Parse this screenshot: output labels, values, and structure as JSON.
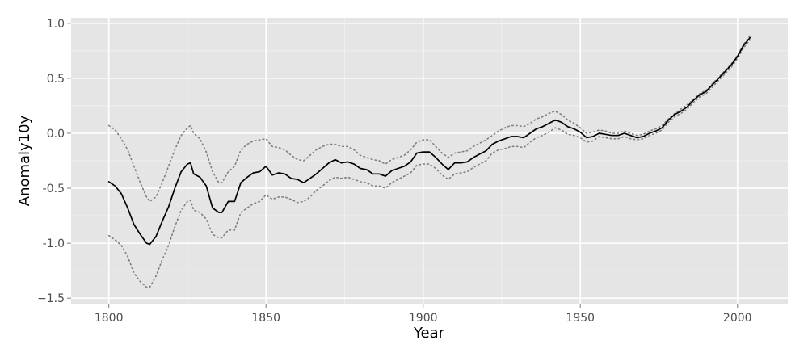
{
  "chart_data": {
    "type": "line",
    "title": "",
    "xlabel": "Year",
    "ylabel": "Anomaly10y",
    "xlim": [
      1788,
      2016
    ],
    "ylim": [
      -1.55,
      1.05
    ],
    "x_ticks": [
      1800,
      1850,
      1900,
      1950,
      2000
    ],
    "x_tick_labels": [
      "1800",
      "1850",
      "1900",
      "1950",
      "2000"
    ],
    "y_ticks": [
      1.0,
      0.5,
      0.0,
      -0.5,
      -1.0,
      -1.5
    ],
    "y_tick_labels": [
      "1.0",
      "0.5",
      "0.0",
      "-0.5",
      "-1.0",
      "−1.5"
    ],
    "grid": true,
    "background_color": "#e5e5e5",
    "colors": {
      "main": "#000000",
      "bounds": "#7f7f7f"
    },
    "series": [
      {
        "role": "anomaly",
        "style": "solid",
        "x": [
          1800,
          1802,
          1804,
          1806,
          1808,
          1810,
          1812,
          1813,
          1815,
          1817,
          1819,
          1821,
          1823,
          1825,
          1826,
          1827,
          1829,
          1831,
          1833,
          1835,
          1836,
          1838,
          1840,
          1842,
          1844,
          1846,
          1848,
          1850,
          1852,
          1854,
          1856,
          1858,
          1860,
          1862,
          1864,
          1866,
          1868,
          1870,
          1872,
          1874,
          1876,
          1878,
          1880,
          1882,
          1884,
          1886,
          1888,
          1890,
          1892,
          1894,
          1896,
          1898,
          1900,
          1902,
          1904,
          1906,
          1908,
          1910,
          1912,
          1914,
          1916,
          1918,
          1920,
          1922,
          1924,
          1926,
          1928,
          1930,
          1932,
          1934,
          1936,
          1938,
          1940,
          1942,
          1944,
          1946,
          1948,
          1950,
          1952,
          1954,
          1956,
          1958,
          1960,
          1962,
          1964,
          1966,
          1968,
          1970,
          1972,
          1974,
          1976,
          1978,
          1980,
          1982,
          1984,
          1986,
          1988,
          1990,
          1992,
          1994,
          1996,
          1998,
          2000,
          2002,
          2004
        ],
        "y": [
          -0.44,
          -0.48,
          -0.55,
          -0.68,
          -0.83,
          -0.92,
          -1.0,
          -1.01,
          -0.94,
          -0.8,
          -0.67,
          -0.5,
          -0.35,
          -0.28,
          -0.27,
          -0.37,
          -0.4,
          -0.48,
          -0.68,
          -0.72,
          -0.72,
          -0.62,
          -0.62,
          -0.45,
          -0.4,
          -0.36,
          -0.35,
          -0.3,
          -0.38,
          -0.36,
          -0.37,
          -0.41,
          -0.42,
          -0.45,
          -0.41,
          -0.37,
          -0.32,
          -0.27,
          -0.24,
          -0.27,
          -0.26,
          -0.28,
          -0.32,
          -0.33,
          -0.37,
          -0.37,
          -0.39,
          -0.34,
          -0.32,
          -0.3,
          -0.26,
          -0.18,
          -0.17,
          -0.17,
          -0.22,
          -0.28,
          -0.33,
          -0.27,
          -0.27,
          -0.26,
          -0.22,
          -0.19,
          -0.16,
          -0.1,
          -0.07,
          -0.05,
          -0.03,
          -0.03,
          -0.04,
          0.0,
          0.04,
          0.06,
          0.09,
          0.12,
          0.1,
          0.06,
          0.04,
          0.01,
          -0.04,
          -0.03,
          0.0,
          -0.01,
          -0.02,
          -0.02,
          0.0,
          -0.02,
          -0.04,
          -0.03,
          0.0,
          0.02,
          0.05,
          0.12,
          0.17,
          0.2,
          0.24,
          0.3,
          0.35,
          0.38,
          0.44,
          0.5,
          0.56,
          0.62,
          0.7,
          0.8,
          0.87
        ]
      },
      {
        "role": "upper-bound",
        "style": "dotted",
        "x": [
          1800,
          1802,
          1804,
          1806,
          1808,
          1810,
          1812,
          1813,
          1815,
          1817,
          1819,
          1821,
          1823,
          1825,
          1826,
          1827,
          1829,
          1831,
          1833,
          1835,
          1836,
          1838,
          1840,
          1842,
          1844,
          1846,
          1848,
          1850,
          1852,
          1854,
          1856,
          1858,
          1860,
          1862,
          1864,
          1866,
          1868,
          1870,
          1872,
          1874,
          1876,
          1878,
          1880,
          1882,
          1884,
          1886,
          1888,
          1890,
          1892,
          1894,
          1896,
          1898,
          1900,
          1902,
          1904,
          1906,
          1908,
          1910,
          1912,
          1914,
          1916,
          1918,
          1920,
          1922,
          1924,
          1926,
          1928,
          1930,
          1932,
          1934,
          1936,
          1938,
          1940,
          1942,
          1944,
          1946,
          1948,
          1950,
          1952,
          1954,
          1956,
          1958,
          1960,
          1962,
          1964,
          1966,
          1968,
          1970,
          1972,
          1974,
          1976,
          1978,
          1980,
          1982,
          1984,
          1986,
          1988,
          1990,
          1992,
          1994,
          1996,
          1998,
          2000,
          2002,
          2004
        ],
        "y": [
          0.07,
          0.03,
          -0.05,
          -0.15,
          -0.3,
          -0.45,
          -0.58,
          -0.62,
          -0.58,
          -0.45,
          -0.3,
          -0.15,
          -0.02,
          0.05,
          0.07,
          0.0,
          -0.05,
          -0.17,
          -0.35,
          -0.45,
          -0.45,
          -0.35,
          -0.3,
          -0.15,
          -0.1,
          -0.07,
          -0.06,
          -0.05,
          -0.12,
          -0.13,
          -0.15,
          -0.2,
          -0.24,
          -0.25,
          -0.2,
          -0.15,
          -0.12,
          -0.1,
          -0.1,
          -0.12,
          -0.12,
          -0.15,
          -0.2,
          -0.22,
          -0.24,
          -0.25,
          -0.28,
          -0.24,
          -0.22,
          -0.2,
          -0.15,
          -0.08,
          -0.06,
          -0.06,
          -0.12,
          -0.18,
          -0.22,
          -0.18,
          -0.17,
          -0.16,
          -0.12,
          -0.09,
          -0.06,
          -0.02,
          0.02,
          0.05,
          0.07,
          0.07,
          0.06,
          0.09,
          0.13,
          0.15,
          0.18,
          0.2,
          0.17,
          0.12,
          0.09,
          0.05,
          0.0,
          0.01,
          0.03,
          0.02,
          0.0,
          0.0,
          0.02,
          0.0,
          -0.02,
          -0.01,
          0.02,
          0.04,
          0.07,
          0.13,
          0.18,
          0.22,
          0.26,
          0.31,
          0.36,
          0.39,
          0.45,
          0.51,
          0.57,
          0.63,
          0.71,
          0.81,
          0.89
        ]
      },
      {
        "role": "lower-bound",
        "style": "dotted",
        "x": [
          1800,
          1802,
          1804,
          1806,
          1808,
          1810,
          1812,
          1813,
          1815,
          1817,
          1819,
          1821,
          1823,
          1825,
          1826,
          1827,
          1829,
          1831,
          1833,
          1835,
          1836,
          1838,
          1840,
          1842,
          1844,
          1846,
          1848,
          1850,
          1852,
          1854,
          1856,
          1858,
          1860,
          1862,
          1864,
          1866,
          1868,
          1870,
          1872,
          1874,
          1876,
          1878,
          1880,
          1882,
          1884,
          1886,
          1888,
          1890,
          1892,
          1894,
          1896,
          1898,
          1900,
          1902,
          1904,
          1906,
          1908,
          1910,
          1912,
          1914,
          1916,
          1918,
          1920,
          1922,
          1924,
          1926,
          1928,
          1930,
          1932,
          1934,
          1936,
          1938,
          1940,
          1942,
          1944,
          1946,
          1948,
          1950,
          1952,
          1954,
          1956,
          1958,
          1960,
          1962,
          1964,
          1966,
          1968,
          1970,
          1972,
          1974,
          1976,
          1978,
          1980,
          1982,
          1984,
          1986,
          1988,
          1990,
          1992,
          1994,
          1996,
          1998,
          2000,
          2002,
          2004
        ],
        "y": [
          -0.93,
          -0.97,
          -1.02,
          -1.12,
          -1.27,
          -1.35,
          -1.4,
          -1.4,
          -1.3,
          -1.15,
          -1.02,
          -0.85,
          -0.7,
          -0.62,
          -0.61,
          -0.7,
          -0.72,
          -0.78,
          -0.92,
          -0.95,
          -0.95,
          -0.88,
          -0.88,
          -0.72,
          -0.68,
          -0.64,
          -0.62,
          -0.56,
          -0.6,
          -0.58,
          -0.58,
          -0.6,
          -0.63,
          -0.62,
          -0.58,
          -0.52,
          -0.48,
          -0.43,
          -0.4,
          -0.41,
          -0.4,
          -0.42,
          -0.44,
          -0.45,
          -0.48,
          -0.48,
          -0.5,
          -0.45,
          -0.42,
          -0.39,
          -0.36,
          -0.29,
          -0.28,
          -0.28,
          -0.32,
          -0.38,
          -0.42,
          -0.37,
          -0.36,
          -0.35,
          -0.31,
          -0.28,
          -0.25,
          -0.18,
          -0.15,
          -0.14,
          -0.12,
          -0.12,
          -0.13,
          -0.08,
          -0.04,
          -0.02,
          0.01,
          0.05,
          0.03,
          -0.01,
          -0.02,
          -0.04,
          -0.08,
          -0.07,
          -0.03,
          -0.04,
          -0.05,
          -0.05,
          -0.03,
          -0.05,
          -0.06,
          -0.05,
          -0.02,
          0.0,
          0.03,
          0.1,
          0.15,
          0.18,
          0.22,
          0.28,
          0.33,
          0.36,
          0.42,
          0.48,
          0.54,
          0.6,
          0.68,
          0.78,
          0.85
        ]
      }
    ]
  }
}
